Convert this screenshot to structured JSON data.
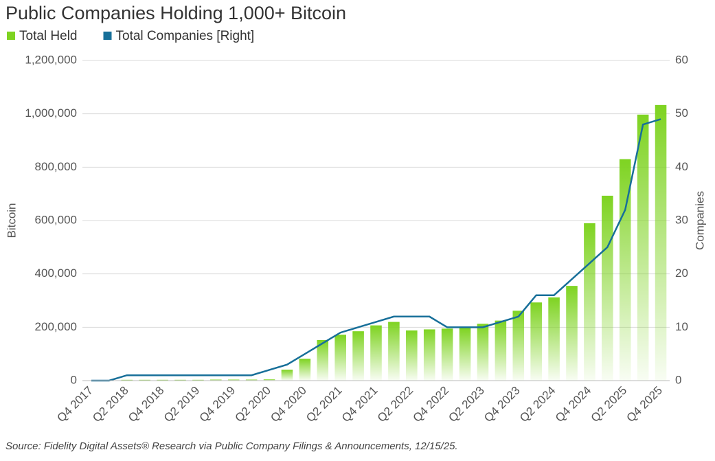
{
  "chart_data": {
    "type": "bar-line",
    "title": "Public Companies Holding 1,000+ Bitcoin",
    "source": "Source: Fidelity Digital Assets® Research via Public Company Filings & Announcements, 12/15/25.",
    "y_label": "Bitcoin",
    "y2_label": "Companies",
    "categories": [
      "Q4 2017",
      null,
      "Q2 2018",
      null,
      "Q4 2018",
      null,
      "Q2 2019",
      null,
      "Q4 2019",
      null,
      "Q2 2020",
      null,
      "Q4 2020",
      null,
      "Q2 2021",
      null,
      "Q4 2021",
      null,
      "Q2 2022",
      null,
      "Q4 2022",
      null,
      "Q2 2023",
      null,
      "Q4 2023",
      null,
      "Q2 2024",
      null,
      "Q4 2024",
      null,
      "Q2 2025",
      null,
      "Q4 2025"
    ],
    "series": [
      {
        "name": "Total Held",
        "color": "#7ed321",
        "values": [
          0,
          0,
          3000,
          3000,
          3000,
          3000,
          3000,
          4000,
          4000,
          4000,
          5000,
          41000,
          82000,
          152000,
          172000,
          185000,
          207000,
          220000,
          188000,
          192000,
          195000,
          198000,
          213000,
          225000,
          262000,
          293000,
          312000,
          355000,
          590000,
          693000,
          830000,
          997000,
          1033000
        ]
      },
      {
        "name": "Total Companies [Right]",
        "color": "#176f99",
        "axis": "y2",
        "values": [
          0,
          0,
          1,
          1,
          1,
          1,
          1,
          1,
          1,
          1,
          2,
          3,
          5,
          7,
          9,
          10,
          11,
          12,
          12,
          12,
          10,
          10,
          10,
          11,
          12,
          16,
          16,
          19,
          22,
          25,
          32,
          48,
          49
        ]
      }
    ],
    "ylim": [
      0,
      1200000
    ],
    "yticks": [
      0,
      {
        "value": 200000,
        "label": "200,000"
      },
      {
        "value": 400000,
        "label": "400,000"
      },
      {
        "value": 600000,
        "label": "600,000"
      },
      {
        "value": 800000,
        "label": "800,000"
      },
      {
        "value": 1000000,
        "label": "1,000,000"
      },
      {
        "value": 1200000,
        "label": "1,200,000"
      }
    ],
    "y2lim": [
      0,
      60
    ],
    "y2ticks": [
      0,
      10,
      20,
      30,
      40,
      50,
      60
    ],
    "grid": true
  }
}
